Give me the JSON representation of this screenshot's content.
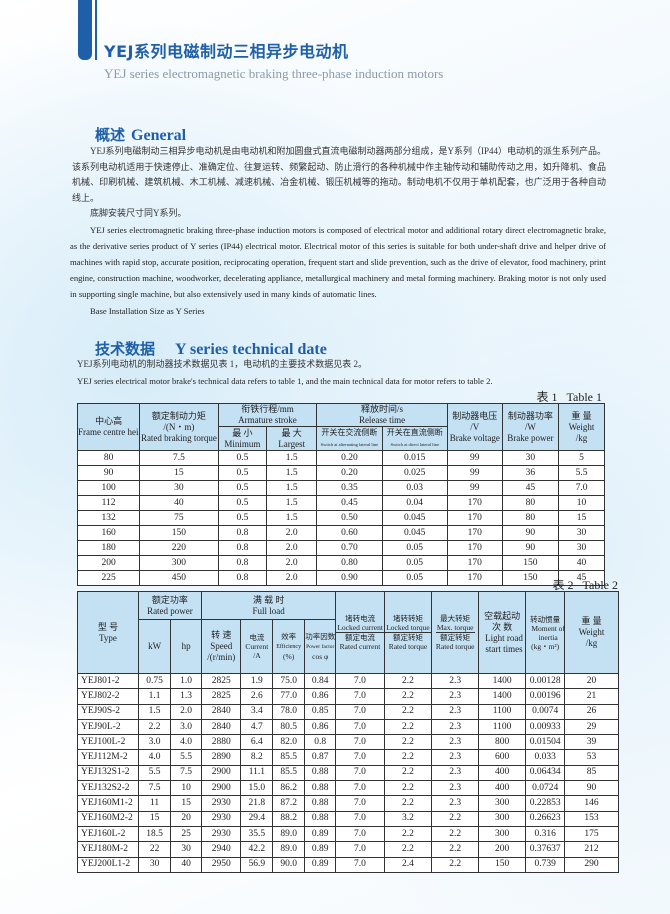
{
  "header": {
    "title_cn": "YEJ系列电磁制动三相异步电动机",
    "title_en": "YEJ series electromagnetic braking three-phase induction motors"
  },
  "general": {
    "heading_cn": "概述",
    "heading_en": "General",
    "para_cn": "YEJ系列电磁制动三相异步电动机是由电动机和附加圆盘式直流电磁制动器两部分组成，是Y系列（IP44）电动机的派生系列产品。该系列电动机适用于快速停止、准确定位、往复运转、频繁起动、防止滑行的各种机械中作主轴传动和辅助传动之用，如升降机、食品机械、印刷机械、建筑机械、木工机械、减速机械、冶金机械、锻压机械等的拖动。制动电机不仅用于单机配套，也广泛用于各种自动线上。",
    "para_cn2": "底脚安装尺寸同Y系列。",
    "para_en": "YEJ series electromagnetic braking three-phase induction motors is composed of electrical motor and additional rotary direct electromagnetic brake, as the derivative series product of Y series (IP44) electrical motor. Electrical motor of this series is suitable for both under-shaft drive and helper drive of machines with rapid stop, accurate position, reciprocating operation, frequent start and slide prevention, such as the drive of elevator, food machinery, print engine, construction machine, woodworker, decelerating appliance, metallurgical machinery and metal forming machinery. Braking motor is not only used in supporting single machine, but also extensively used in many kinds of automatic lines.",
    "para_en2": "Base Installation Size as Y Series"
  },
  "tech": {
    "heading_cn": "技术数据",
    "heading_en": "Y series technical date",
    "para_cn": "YEJ系列电动机的制动器技术数据见表 1，电动机的主要技术数据见表 2。",
    "para_en": "YEJ series electrical motor brake's technical data refers to table 1, and the main technical data for motor refers to table 2."
  },
  "table1": {
    "caption_cn": "表 1",
    "caption_en": "Table 1",
    "h": {
      "frame_cn": "中心高",
      "frame_en": "Frame centre height /mm",
      "torque_cn": "额定制动力矩",
      "torque_unit": "/(N・m)",
      "torque_en": "Rated braking torque",
      "stroke": "衔铁行程/mm",
      "stroke_en": "Armature stroke",
      "min_cn": "最 小",
      "min_en": "Minimum",
      "max_cn": "最 大",
      "max_en": "Largest",
      "release": "释放时间/s",
      "release_en": "Release time",
      "ac_cn": "开关在交流侧断",
      "ac_en": "Switch at alternating lateral line",
      "dc_cn": "开关在直流侧断",
      "dc_en": "Switch at direct lateral line",
      "volt_cn": "制动器电压",
      "volt_unit": "/V",
      "volt_en": "Brake voltage",
      "power_cn": "制动器功率",
      "power_unit": "/W",
      "power_en": "Brake power",
      "weight_cn": "重 量",
      "weight_en": "Weight",
      "weight_unit": "/kg"
    },
    "rows": [
      [
        "80",
        "7.5",
        "0.5",
        "1.5",
        "0.20",
        "0.015",
        "99",
        "30",
        "5"
      ],
      [
        "90",
        "15",
        "0.5",
        "1.5",
        "0.20",
        "0.025",
        "99",
        "36",
        "5.5"
      ],
      [
        "100",
        "30",
        "0.5",
        "1.5",
        "0.35",
        "0.03",
        "99",
        "45",
        "7.0"
      ],
      [
        "112",
        "40",
        "0.5",
        "1.5",
        "0.45",
        "0.04",
        "170",
        "80",
        "10"
      ],
      [
        "132",
        "75",
        "0.5",
        "1.5",
        "0.50",
        "0.045",
        "170",
        "80",
        "15"
      ],
      [
        "160",
        "150",
        "0.8",
        "2.0",
        "0.60",
        "0.045",
        "170",
        "90",
        "30"
      ],
      [
        "180",
        "220",
        "0.8",
        "2.0",
        "0.70",
        "0.05",
        "170",
        "90",
        "30"
      ],
      [
        "200",
        "300",
        "0.8",
        "2.0",
        "0.80",
        "0.05",
        "170",
        "150",
        "40"
      ],
      [
        "225",
        "450",
        "0.8",
        "2.0",
        "0.90",
        "0.05",
        "170",
        "150",
        "45"
      ]
    ]
  },
  "table2": {
    "caption_cn": "表 2",
    "caption_en": "Table 2",
    "h": {
      "type_cn": "型 号",
      "type_en": "Type",
      "rp_cn": "额定功率",
      "rp_en": "Rated power",
      "kw": "kW",
      "hp": "hp",
      "fl_cn": "满 载 时",
      "fl_en": "Full load",
      "speed_cn": "转 速",
      "speed_en": "Speed",
      "speed_unit": "/(r/min)",
      "cur_cn": "电流",
      "cur_en": "Current",
      "cur_unit": "/A",
      "eff_cn": "效率",
      "eff_en": "Efficiency",
      "eff_unit": "(%)",
      "pf_cn": "功率因数",
      "pf_en": "Power factor",
      "pf_unit": "cos φ",
      "lc_cn": "堵转电流",
      "lc_en": "Locked current",
      "rc_cn": "额定电流",
      "rc_en": "Rated current",
      "lt_cn": "堵转转矩",
      "lt_en": "Locked torque",
      "rt_cn": "额定转矩",
      "rt_en": "Rated torque",
      "mt_cn": "最大转矩",
      "mt_en": "Max. torque",
      "rt2_cn": "额定转矩",
      "rt2_en": "Rated torque",
      "st_cn": "空载起动",
      "st_cn2": "次 数",
      "st_en": "Light road start times",
      "mi_cn": "转动惯量",
      "mi_en": "Moment of inertia",
      "mi_unit": "(kg・m²)",
      "w_cn": "重 量",
      "w_en": "Weight",
      "w_unit": "/kg"
    },
    "rows": [
      [
        "YEJ801-2",
        "0.75",
        "1.0",
        "2825",
        "1.9",
        "75.0",
        "0.84",
        "7.0",
        "2.2",
        "2.3",
        "1400",
        "0.00128",
        "20"
      ],
      [
        "YEJ802-2",
        "1.1",
        "1.3",
        "2825",
        "2.6",
        "77.0",
        "0.86",
        "7.0",
        "2.2",
        "2.3",
        "1400",
        "0.00196",
        "21"
      ],
      [
        "YEJ90S-2",
        "1.5",
        "2.0",
        "2840",
        "3.4",
        "78.0",
        "0.85",
        "7.0",
        "2.2",
        "2.3",
        "1100",
        "0.0074",
        "26"
      ],
      [
        "YEJ90L-2",
        "2.2",
        "3.0",
        "2840",
        "4.7",
        "80.5",
        "0.86",
        "7.0",
        "2.2",
        "2.3",
        "1100",
        "0.00933",
        "29"
      ],
      [
        "YEJ100L-2",
        "3.0",
        "4.0",
        "2880",
        "6.4",
        "82.0",
        "0.8",
        "7.0",
        "2.2",
        "2.3",
        "800",
        "0.01504",
        "39"
      ],
      [
        "YEJ112M-2",
        "4.0",
        "5.5",
        "2890",
        "8.2",
        "85.5",
        "0.87",
        "7.0",
        "2.2",
        "2.3",
        "600",
        "0.033",
        "53"
      ],
      [
        "YEJ132S1-2",
        "5.5",
        "7.5",
        "2900",
        "11.1",
        "85.5",
        "0.88",
        "7.0",
        "2.2",
        "2.3",
        "400",
        "0.06434",
        "85"
      ],
      [
        "YEJ132S2-2",
        "7.5",
        "10",
        "2900",
        "15.0",
        "86.2",
        "0.88",
        "7.0",
        "2.2",
        "2.3",
        "400",
        "0.0724",
        "90"
      ],
      [
        "YEJ160M1-2",
        "11",
        "15",
        "2930",
        "21.8",
        "87.2",
        "0.88",
        "7.0",
        "2.2",
        "2.3",
        "300",
        "0.22853",
        "146"
      ],
      [
        "YEJ160M2-2",
        "15",
        "20",
        "2930",
        "29.4",
        "88.2",
        "0.88",
        "7.0",
        "3.2",
        "2.2",
        "300",
        "0.26623",
        "153"
      ],
      [
        "YEJ160L-2",
        "18.5",
        "25",
        "2930",
        "35.5",
        "89.0",
        "0.89",
        "7.0",
        "2.2",
        "2.2",
        "300",
        "0.316",
        "175"
      ],
      [
        "YEJ180M-2",
        "22",
        "30",
        "2940",
        "42.2",
        "89.0",
        "0.89",
        "7.0",
        "2.2",
        "2.2",
        "200",
        "0.37637",
        "212"
      ],
      [
        "YEJ200L1-2",
        "30",
        "40",
        "2950",
        "56.9",
        "90.0",
        "0.89",
        "7.0",
        "2.4",
        "2.2",
        "150",
        "0.739",
        "290"
      ]
    ]
  },
  "colors": {
    "accent": "#1f5fa8",
    "header_fill": "#c4e1f4"
  }
}
